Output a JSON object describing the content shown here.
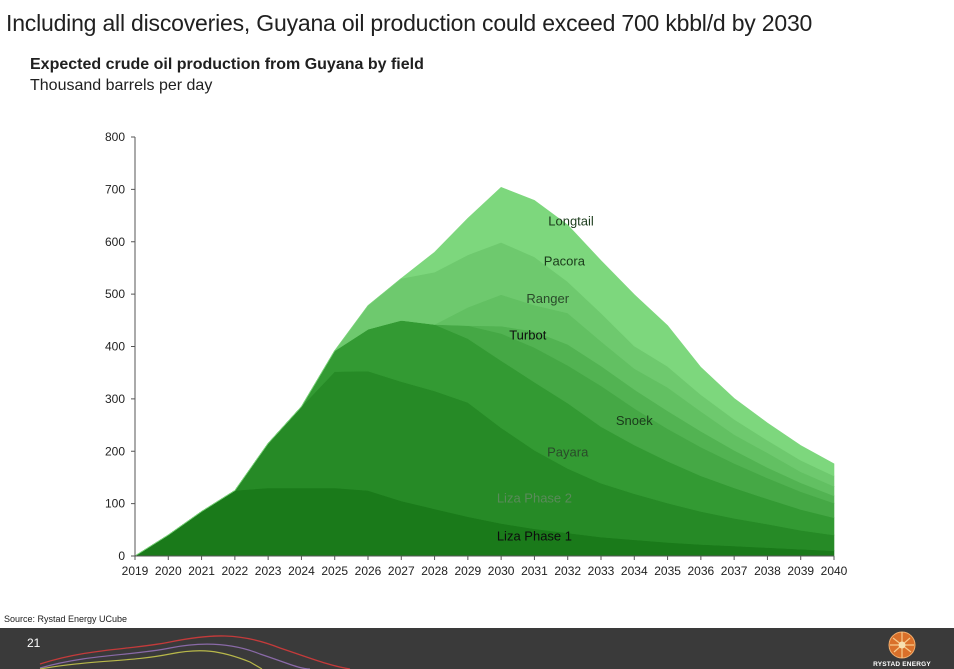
{
  "header": {
    "title": "Including all discoveries, Guyana oil production could exceed 700 kbbl/d  by 2030"
  },
  "chart_data": {
    "type": "area",
    "stacked": true,
    "title": "Expected crude oil production from Guyana by field",
    "subtitle": "Thousand barrels per day",
    "x": [
      "2019",
      "2020",
      "2021",
      "2022",
      "2023",
      "2024",
      "2025",
      "2026",
      "2027",
      "2028",
      "2029",
      "2030",
      "2031",
      "2032",
      "2033",
      "2034",
      "2035",
      "2036",
      "2037",
      "2038",
      "2039",
      "2040"
    ],
    "ylim": [
      0,
      800
    ],
    "yticks": [
      0,
      100,
      200,
      300,
      400,
      500,
      600,
      700,
      800
    ],
    "grid": false,
    "legend": "inline labels",
    "series": [
      {
        "name": "Liza Phase 1",
        "color": "#1a7a1a",
        "values": [
          0,
          40,
          85,
          125,
          130,
          130,
          130,
          125,
          105,
          90,
          75,
          62,
          52,
          44,
          36,
          31,
          26,
          22,
          19,
          16,
          13,
          10
        ]
      },
      {
        "name": "Liza Phase 2",
        "color": "#268a26",
        "values": [
          0,
          0,
          0,
          0,
          85,
          155,
          222,
          228,
          228,
          225,
          218,
          183,
          150,
          123,
          103,
          88,
          75,
          63,
          53,
          45,
          36,
          30
        ]
      },
      {
        "name": "Payara",
        "color": "#339a33",
        "values": [
          0,
          0,
          0,
          0,
          0,
          0,
          40,
          80,
          117,
          127,
          122,
          128,
          130,
          125,
          108,
          93,
          80,
          68,
          58,
          48,
          40,
          33
        ]
      },
      {
        "name": "Snoek",
        "color": "#45a845",
        "values": [
          0,
          0,
          0,
          0,
          0,
          0,
          0,
          0,
          0,
          0,
          25,
          52,
          66,
          72,
          78,
          70,
          62,
          55,
          47,
          40,
          34,
          28
        ]
      },
      {
        "name": "Turbot",
        "color": "#52b352",
        "values": [
          0,
          0,
          0,
          0,
          0,
          0,
          0,
          0,
          0,
          0,
          0,
          14,
          31,
          40,
          38,
          36,
          34,
          30,
          25,
          20,
          17,
          14
        ]
      },
      {
        "name": "Ranger",
        "color": "#62c062",
        "values": [
          0,
          0,
          0,
          0,
          0,
          0,
          0,
          0,
          0,
          0,
          35,
          60,
          50,
          60,
          47,
          40,
          45,
          38,
          30,
          28,
          21,
          18
        ]
      },
      {
        "name": "Pacora",
        "color": "#6ec96e",
        "values": [
          0,
          0,
          0,
          0,
          0,
          0,
          0,
          45,
          80,
          100,
          100,
          100,
          92,
          60,
          54,
          43,
          40,
          32,
          29,
          24,
          22,
          20
        ]
      },
      {
        "name": "Longtail",
        "color": "#7dd77d",
        "values": [
          0,
          0,
          0,
          0,
          0,
          0,
          0,
          0,
          0,
          38,
          70,
          105,
          108,
          108,
          100,
          98,
          78,
          52,
          40,
          33,
          28,
          23
        ]
      }
    ],
    "labels": [
      {
        "series": "Liza Phase 1",
        "text": "Liza Phase 1",
        "x": "2031",
        "y": 30,
        "color": "#0d0d0d"
      },
      {
        "series": "Liza Phase 2",
        "text": "Liza Phase 2",
        "x": "2031",
        "y": 102,
        "color": "#5a8a5a"
      },
      {
        "series": "Payara",
        "text": "Payara",
        "x": "2032",
        "y": 190,
        "color": "#2a4a2a"
      },
      {
        "series": "Snoek",
        "text": "Snoek",
        "x": "2034",
        "y": 250,
        "color": "#1a3a1a"
      },
      {
        "series": "Turbot",
        "text": "Turbot",
        "x": "2030.8",
        "y": 413,
        "color": "#0d0d0d"
      },
      {
        "series": "Ranger",
        "text": "Ranger",
        "x": "2031.4",
        "y": 483,
        "color": "#2a4a2a"
      },
      {
        "series": "Pacora",
        "text": "Pacora",
        "x": "2031.9",
        "y": 555,
        "color": "#1a3a1a"
      },
      {
        "series": "Longtail",
        "text": "Longtail",
        "x": "2032.1",
        "y": 631,
        "color": "#1a3a1a"
      }
    ]
  },
  "footer": {
    "source": "Source: Rystad Energy UCube",
    "page_number": "21",
    "logo_text": "RYSTAD ENERGY"
  }
}
